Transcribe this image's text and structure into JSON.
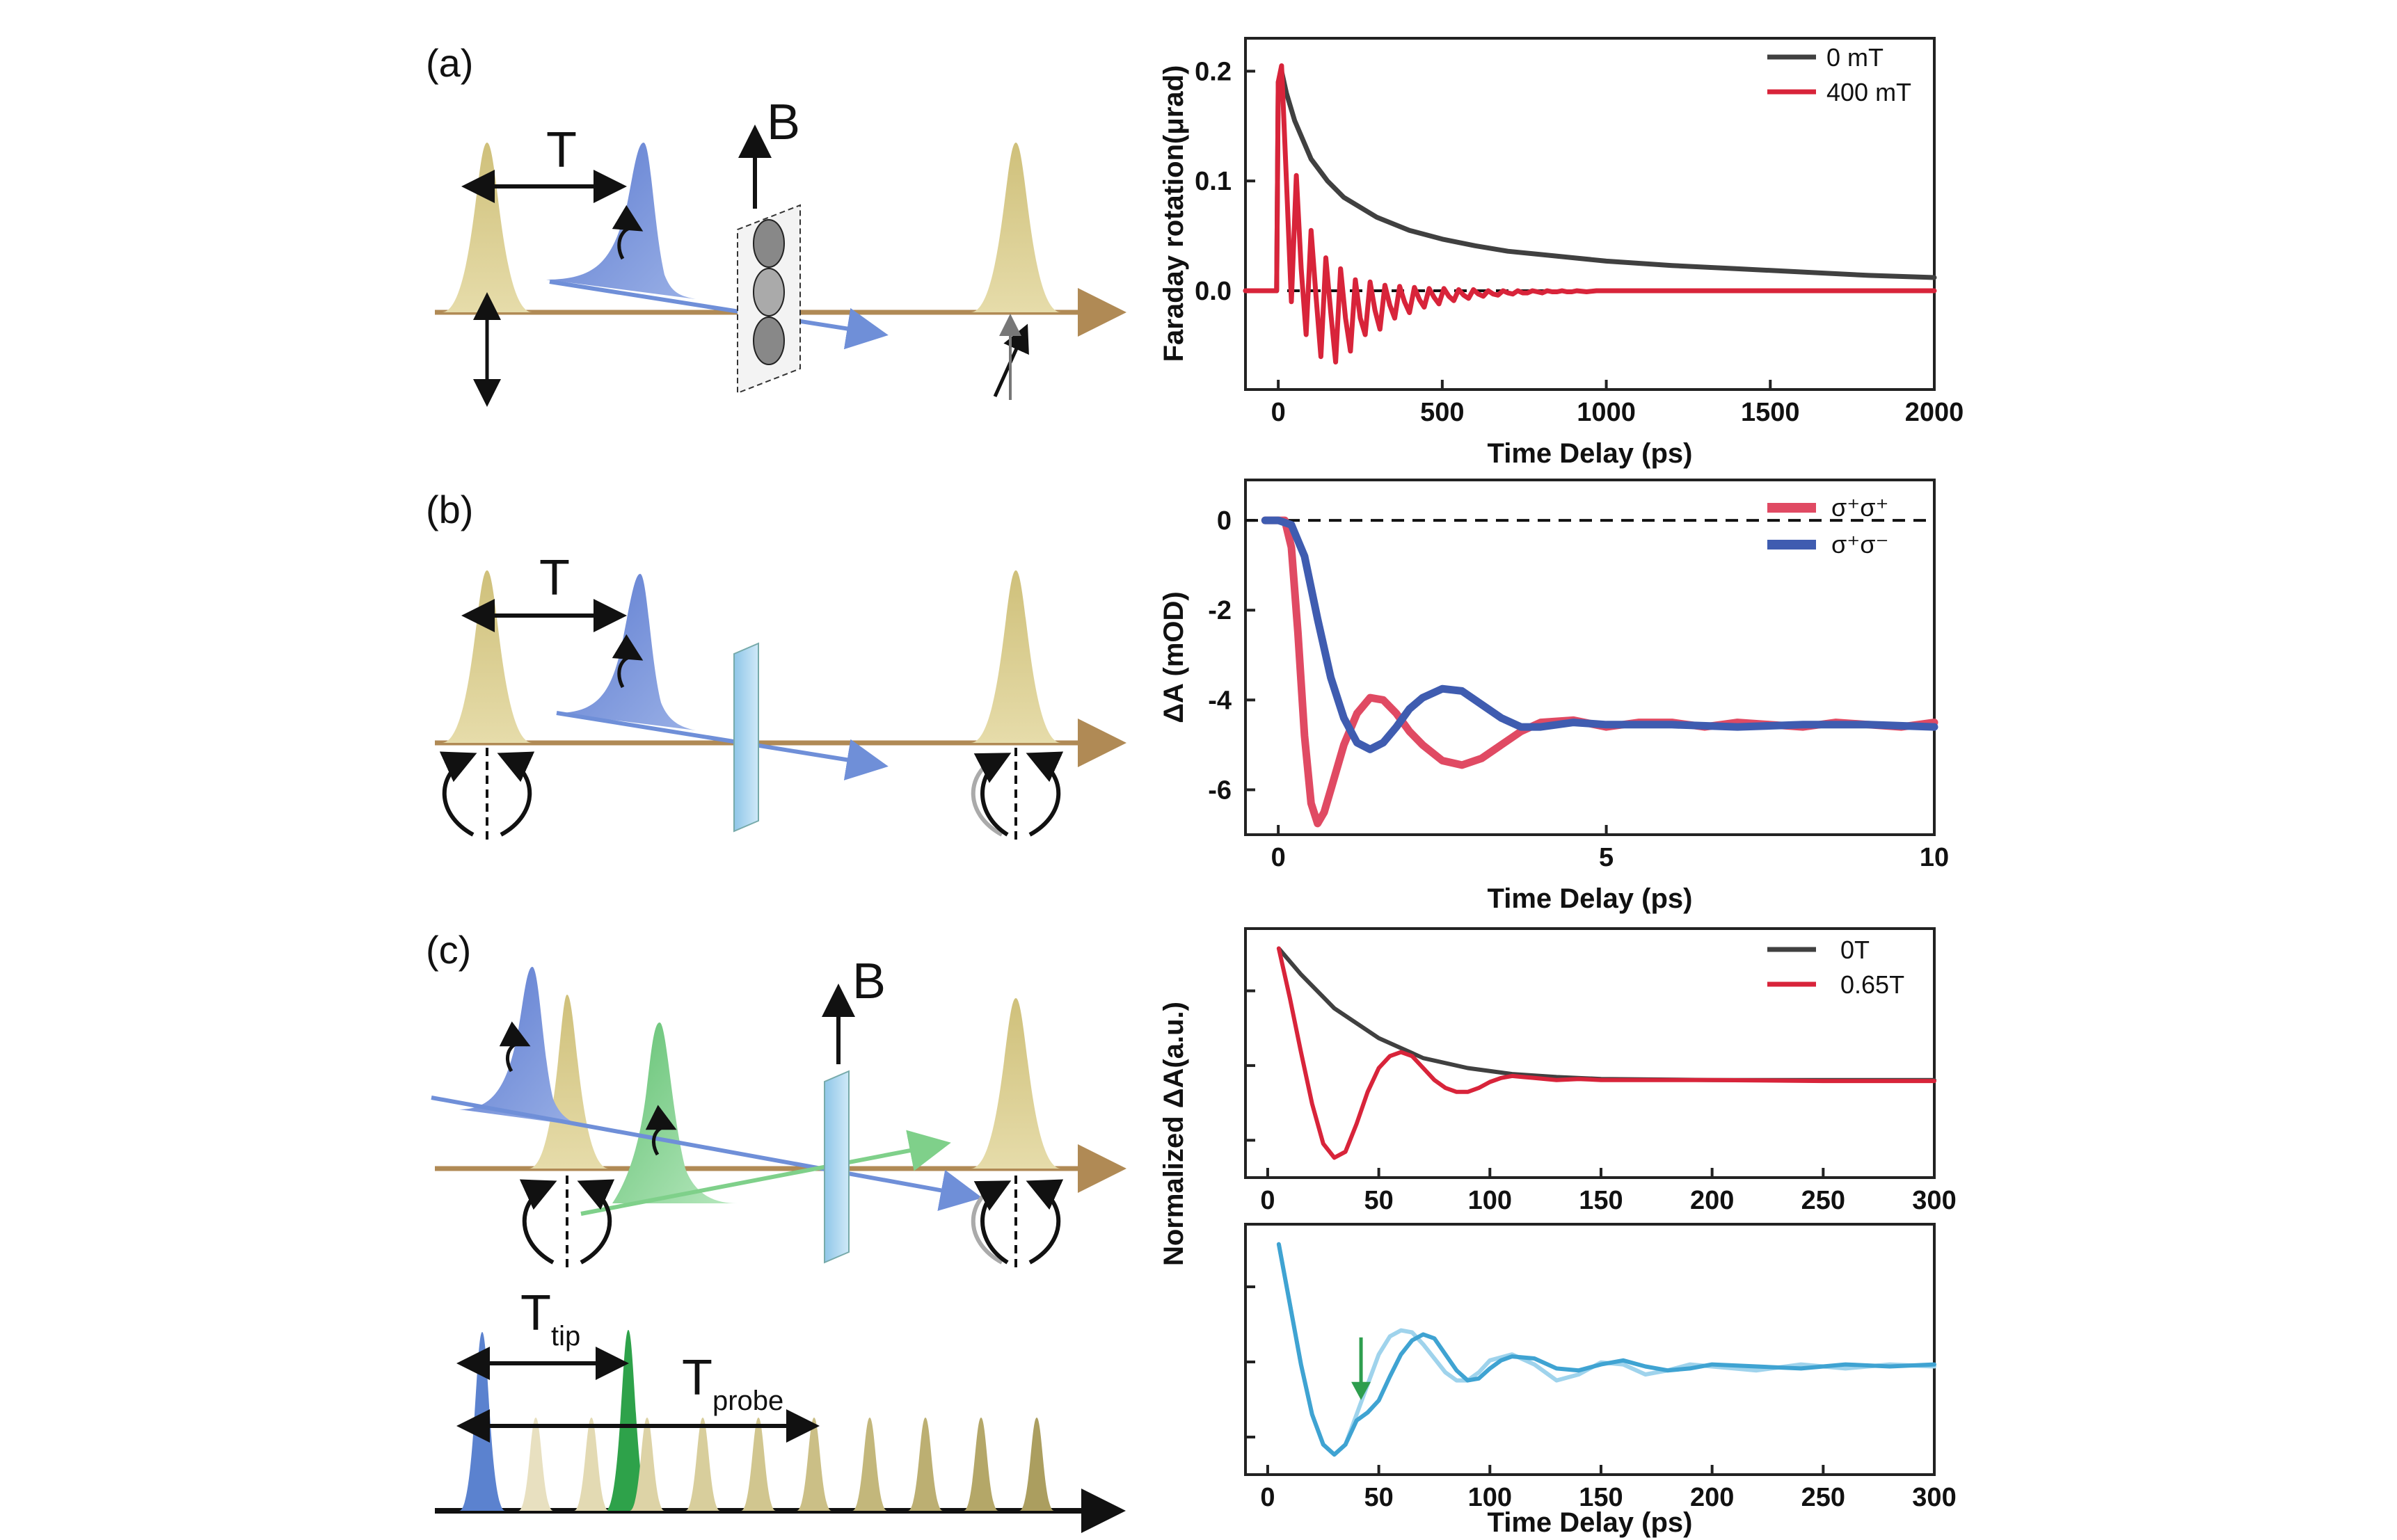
{
  "panel_labels": [
    "(a)",
    "(b)",
    "(c)"
  ],
  "schematic_labels": {
    "a_delay": "T",
    "a_field": "B",
    "b_delay": "T",
    "c_field": "B",
    "c_tip_main": "T",
    "c_tip_sub": "tip",
    "c_probe_main": "T",
    "c_probe_sub": "probe"
  },
  "colors": {
    "gold_pulse": "#d6c98a",
    "blue_pulse": "#6f8fd8",
    "green_pulse": "#7fd08a",
    "axis_line": "#b08a55",
    "black_trace": "#404040",
    "red_trace": "#d8243a",
    "pink_trace": "#e04a63",
    "blue_trace": "#3f5cb0",
    "light_blue_trace": "#9fd3ec",
    "mid_blue_trace": "#3fa3d2",
    "green_arrow": "#2e9e4e"
  },
  "chart_data": [
    {
      "id": "a",
      "type": "line",
      "xlabel": "Time Delay (ps)",
      "ylabel": "Faraday rotation(μrad)",
      "xlim": [
        -100,
        2000
      ],
      "ylim": [
        -0.09,
        0.23
      ],
      "xticks": [
        "0",
        "500",
        "1000",
        "1500",
        "2000"
      ],
      "yticks": [
        "0.0",
        "0.1",
        "0.2"
      ],
      "zero_line": true,
      "legend_position": "top-right",
      "series": [
        {
          "name": "0 mT",
          "color": "#404040",
          "x": [
            -100,
            -5,
            0,
            10,
            25,
            50,
            100,
            150,
            200,
            300,
            400,
            500,
            600,
            700,
            800,
            900,
            1000,
            1200,
            1400,
            1600,
            1800,
            2000
          ],
          "y": [
            0,
            0,
            0.19,
            0.2,
            0.18,
            0.155,
            0.12,
            0.1,
            0.085,
            0.067,
            0.055,
            0.047,
            0.041,
            0.036,
            0.033,
            0.03,
            0.027,
            0.023,
            0.02,
            0.017,
            0.014,
            0.012
          ]
        },
        {
          "name": "400 mT",
          "color": "#d8243a",
          "x": [
            -100,
            -5,
            0,
            10,
            25,
            40,
            55,
            70,
            85,
            100,
            115,
            130,
            145,
            160,
            175,
            190,
            205,
            220,
            235,
            250,
            265,
            280,
            295,
            310,
            325,
            340,
            355,
            370,
            385,
            400,
            415,
            430,
            445,
            460,
            475,
            490,
            505,
            520,
            535,
            550,
            565,
            580,
            595,
            610,
            625,
            640,
            655,
            670,
            685,
            700,
            715,
            730,
            745,
            760,
            775,
            790,
            805,
            820,
            835,
            850,
            865,
            880,
            895,
            910,
            940,
            970,
            1000,
            1100,
            1200,
            1300,
            1400,
            1500,
            1600,
            1700,
            1800,
            1900,
            2000
          ],
          "y": [
            0,
            0,
            0.19,
            0.205,
            0.1,
            -0.01,
            0.105,
            0.02,
            -0.04,
            0.055,
            -0.005,
            -0.06,
            0.03,
            -0.02,
            -0.065,
            0.02,
            -0.025,
            -0.055,
            0.01,
            -0.025,
            -0.04,
            0.008,
            -0.018,
            -0.035,
            0.005,
            -0.013,
            -0.025,
            0.004,
            -0.01,
            -0.02,
            0.003,
            -0.008,
            -0.015,
            0.002,
            -0.006,
            -0.012,
            0.002,
            -0.005,
            -0.009,
            0.001,
            -0.004,
            -0.007,
            0.001,
            -0.003,
            -0.005,
            0.0,
            -0.003,
            -0.004,
            0.0,
            -0.002,
            -0.003,
            0.0,
            -0.002,
            -0.002,
            0.0,
            -0.001,
            -0.002,
            0.0,
            -0.001,
            -0.001,
            0.0,
            -0.001,
            -0.001,
            0.0,
            -0.001,
            0.0,
            0.0,
            0.0,
            0.0,
            0.0,
            0.0,
            0.0,
            0.0,
            0.0,
            0.0,
            0.0,
            0.0
          ]
        }
      ]
    },
    {
      "id": "b",
      "type": "line",
      "xlabel": "Time Delay (ps)",
      "ylabel": "ΔA (mOD)",
      "xlim": [
        -0.5,
        10
      ],
      "ylim": [
        -7.0,
        0.9
      ],
      "xticks": [
        "0",
        "5",
        "10"
      ],
      "yticks": [
        "0",
        "-2",
        "-4",
        "-6"
      ],
      "zero_line": true,
      "legend_position": "top-right",
      "series": [
        {
          "name": "σ⁺σ⁺",
          "color": "#e04a63",
          "x": [
            -0.2,
            0.0,
            0.1,
            0.2,
            0.3,
            0.4,
            0.5,
            0.6,
            0.7,
            0.8,
            1.0,
            1.2,
            1.4,
            1.6,
            1.8,
            2.0,
            2.2,
            2.5,
            2.8,
            3.1,
            3.4,
            3.7,
            4.0,
            4.5,
            5.0,
            5.5,
            6.0,
            6.5,
            7.0,
            7.5,
            8.0,
            8.5,
            9.0,
            9.5,
            10.0
          ],
          "y": [
            0,
            0,
            0,
            -0.6,
            -2.5,
            -4.8,
            -6.3,
            -6.75,
            -6.5,
            -6.0,
            -5.0,
            -4.3,
            -3.95,
            -4.0,
            -4.3,
            -4.7,
            -5.0,
            -5.35,
            -5.45,
            -5.3,
            -5.0,
            -4.7,
            -4.5,
            -4.45,
            -4.6,
            -4.5,
            -4.5,
            -4.6,
            -4.5,
            -4.55,
            -4.6,
            -4.5,
            -4.55,
            -4.6,
            -4.5
          ]
        },
        {
          "name": "σ⁺σ⁻",
          "color": "#3f5cb0",
          "x": [
            -0.2,
            0.0,
            0.2,
            0.4,
            0.6,
            0.8,
            1.0,
            1.2,
            1.4,
            1.6,
            1.8,
            2.0,
            2.2,
            2.5,
            2.8,
            3.1,
            3.4,
            3.7,
            4.0,
            4.5,
            5.0,
            6.0,
            7.0,
            8.0,
            9.0,
            10.0
          ],
          "y": [
            0,
            0,
            -0.1,
            -0.8,
            -2.2,
            -3.5,
            -4.4,
            -4.95,
            -5.1,
            -4.95,
            -4.6,
            -4.2,
            -3.95,
            -3.75,
            -3.8,
            -4.1,
            -4.4,
            -4.6,
            -4.6,
            -4.5,
            -4.55,
            -4.55,
            -4.6,
            -4.55,
            -4.55,
            -4.6
          ]
        }
      ]
    },
    {
      "id": "c_top",
      "type": "line",
      "xlabel": "",
      "ylabel": "Normalized ΔA(a.u.)",
      "xlim": [
        -10,
        300
      ],
      "ylim": [
        -1.15,
        0.1
      ],
      "xticks": [
        "0",
        "50",
        "100",
        "150",
        "200",
        "250",
        "300"
      ],
      "legend_position": "top-right",
      "series": [
        {
          "name": "0T",
          "color": "#404040",
          "x": [
            5,
            15,
            30,
            50,
            70,
            90,
            110,
            130,
            150,
            200,
            250,
            300
          ],
          "y": [
            0.0,
            -0.13,
            -0.3,
            -0.45,
            -0.55,
            -0.6,
            -0.63,
            -0.645,
            -0.655,
            -0.66,
            -0.66,
            -0.66
          ]
        },
        {
          "name": "0.65T",
          "color": "#d8243a",
          "x": [
            5,
            10,
            15,
            20,
            25,
            30,
            35,
            40,
            45,
            50,
            55,
            60,
            65,
            70,
            75,
            80,
            85,
            90,
            95,
            100,
            105,
            110,
            115,
            120,
            130,
            140,
            150,
            175,
            200,
            250,
            300
          ],
          "y": [
            0.0,
            -0.25,
            -0.52,
            -0.78,
            -0.98,
            -1.05,
            -1.02,
            -0.88,
            -0.72,
            -0.6,
            -0.54,
            -0.52,
            -0.54,
            -0.6,
            -0.66,
            -0.7,
            -0.72,
            -0.72,
            -0.7,
            -0.67,
            -0.65,
            -0.64,
            -0.645,
            -0.65,
            -0.66,
            -0.655,
            -0.66,
            -0.66,
            -0.66,
            -0.665,
            -0.665
          ]
        }
      ]
    },
    {
      "id": "c_bottom",
      "type": "line",
      "xlabel": "Time Delay (ps)",
      "xlim": [
        -10,
        300
      ],
      "ylim": [
        -1.15,
        0.1
      ],
      "xticks": [
        "0",
        "50",
        "100",
        "150",
        "200",
        "250",
        "300"
      ],
      "annotation": {
        "type": "arrow",
        "x": 42
      },
      "series": [
        {
          "color": "#9fd3ec",
          "x": [
            5,
            10,
            15,
            20,
            25,
            30,
            35,
            40,
            45,
            50,
            55,
            60,
            65,
            70,
            75,
            80,
            85,
            90,
            95,
            100,
            110,
            120,
            130,
            140,
            150,
            160,
            170,
            180,
            190,
            200,
            220,
            240,
            260,
            280,
            300
          ],
          "y": [
            0.0,
            -0.3,
            -0.6,
            -0.85,
            -1.0,
            -1.05,
            -1.0,
            -0.85,
            -0.7,
            -0.55,
            -0.46,
            -0.43,
            -0.44,
            -0.5,
            -0.57,
            -0.64,
            -0.68,
            -0.68,
            -0.64,
            -0.58,
            -0.55,
            -0.6,
            -0.68,
            -0.65,
            -0.59,
            -0.6,
            -0.65,
            -0.63,
            -0.6,
            -0.61,
            -0.63,
            -0.6,
            -0.62,
            -0.6,
            -0.61
          ]
        },
        {
          "color": "#3fa3d2",
          "x": [
            5,
            10,
            15,
            20,
            25,
            30,
            35,
            40,
            45,
            50,
            55,
            60,
            65,
            70,
            75,
            80,
            85,
            90,
            95,
            100,
            105,
            110,
            120,
            130,
            140,
            150,
            160,
            170,
            180,
            190,
            200,
            220,
            240,
            260,
            280,
            300
          ],
          "y": [
            0.0,
            -0.3,
            -0.6,
            -0.85,
            -1.0,
            -1.05,
            -1.0,
            -0.88,
            -0.84,
            -0.78,
            -0.66,
            -0.55,
            -0.48,
            -0.45,
            -0.47,
            -0.55,
            -0.63,
            -0.68,
            -0.67,
            -0.62,
            -0.58,
            -0.56,
            -0.57,
            -0.62,
            -0.63,
            -0.6,
            -0.58,
            -0.61,
            -0.63,
            -0.62,
            -0.6,
            -0.61,
            -0.62,
            -0.6,
            -0.61,
            -0.6
          ]
        }
      ]
    }
  ]
}
